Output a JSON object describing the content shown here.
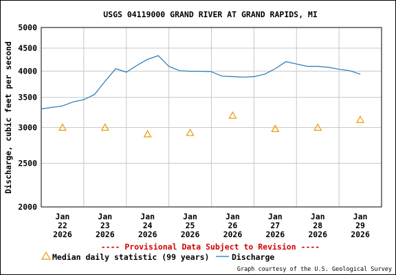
{
  "chart_data": {
    "type": "line",
    "title": "USGS 04119000 GRAND RIVER AT GRAND RAPIDS, MI",
    "ylabel": "Discharge, cubic feet per second",
    "ylim": [
      2000,
      5000
    ],
    "y_scale": "log",
    "y_ticks": [
      2000,
      2500,
      3000,
      3500,
      4000,
      4500,
      5000
    ],
    "x_ticks": [
      {
        "day": "Jan",
        "date": "22",
        "year": "2026"
      },
      {
        "day": "Jan",
        "date": "23",
        "year": "2026"
      },
      {
        "day": "Jan",
        "date": "24",
        "year": "2026"
      },
      {
        "day": "Jan",
        "date": "25",
        "year": "2026"
      },
      {
        "day": "Jan",
        "date": "26",
        "year": "2026"
      },
      {
        "day": "Jan",
        "date": "27",
        "year": "2026"
      },
      {
        "day": "Jan",
        "date": "28",
        "year": "2026"
      },
      {
        "day": "Jan",
        "date": "29",
        "year": "2026"
      }
    ],
    "grid": true,
    "series": [
      {
        "name": "Discharge",
        "color": "#1f77b4",
        "x": [
          "2026-01-21 12:00",
          "2026-01-22 00:00",
          "2026-01-22 06:00",
          "2026-01-22 12:00",
          "2026-01-22 18:00",
          "2026-01-23 00:00",
          "2026-01-23 06:00",
          "2026-01-23 12:00",
          "2026-01-23 18:00",
          "2026-01-24 00:00",
          "2026-01-24 06:00",
          "2026-01-24 12:00",
          "2026-01-24 18:00",
          "2026-01-25 00:00",
          "2026-01-25 06:00",
          "2026-01-25 12:00",
          "2026-01-25 18:00",
          "2026-01-26 00:00",
          "2026-01-26 06:00",
          "2026-01-26 12:00",
          "2026-01-26 18:00",
          "2026-01-27 00:00",
          "2026-01-27 06:00",
          "2026-01-27 12:00",
          "2026-01-27 18:00",
          "2026-01-28 00:00",
          "2026-01-28 06:00",
          "2026-01-28 12:00",
          "2026-01-28 18:00",
          "2026-01-29 00:00"
        ],
        "values": [
          3300,
          3350,
          3420,
          3460,
          3550,
          3800,
          4050,
          3980,
          4120,
          4250,
          4330,
          4100,
          4010,
          4000,
          4000,
          3990,
          3900,
          3890,
          3880,
          3890,
          3940,
          4050,
          4200,
          4150,
          4100,
          4100,
          4080,
          4040,
          4010,
          3940
        ]
      },
      {
        "name": "Median daily statistic (99 years)",
        "color": "#e69a00",
        "x": [
          "2026-01-22",
          "2026-01-23",
          "2026-01-24",
          "2026-01-25",
          "2026-01-26",
          "2026-01-27",
          "2026-01-28",
          "2026-01-29"
        ],
        "values": [
          3000,
          3000,
          2900,
          2920,
          3190,
          2980,
          3000,
          3120
        ]
      }
    ]
  },
  "footer": {
    "provisional": "---- Provisional Data Subject to Revision ----",
    "legend_median": "Median daily statistic (99 years)",
    "legend_discharge": "Discharge",
    "credit": "Graph courtesy of the U.S. Geological Survey"
  }
}
